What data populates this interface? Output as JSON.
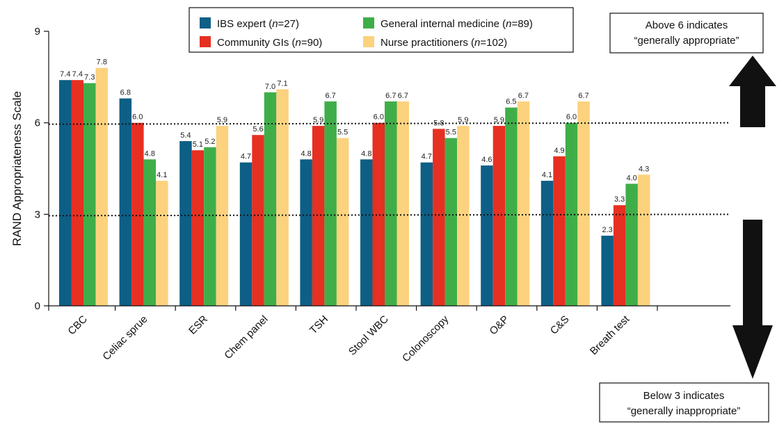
{
  "chart_data": {
    "type": "bar",
    "ylabel": "RAND Appropriateness Scale",
    "xlabel": "",
    "ylim": [
      0,
      9
    ],
    "yticks": [
      0,
      3,
      6,
      9
    ],
    "categories": [
      "CBC",
      "Celiac sprue",
      "ESR",
      "Chem panel",
      "TSH",
      "Stool WBC",
      "Colonoscopy",
      "O&P",
      "C&S",
      "Breath test"
    ],
    "series": [
      {
        "name": "IBS expert (n=27)",
        "color": "#0d5f86",
        "values": [
          7.4,
          6.8,
          5.4,
          4.7,
          4.8,
          4.8,
          4.7,
          4.6,
          4.1,
          2.3
        ],
        "labels": [
          "7.4",
          "6.8",
          "5.4",
          "4.7",
          "4.8",
          "4.8",
          "4.7",
          "4.6",
          "4.1",
          "2.3"
        ]
      },
      {
        "name": "Community GIs (n=90)",
        "color": "#e63022",
        "values": [
          7.4,
          6.0,
          5.1,
          5.6,
          5.9,
          6.0,
          5.8,
          5.9,
          4.9,
          3.3
        ],
        "labels": [
          "7.4",
          "6.0",
          "5.1",
          "5.6",
          "5.9",
          "6.0",
          "5.8",
          "5.9",
          "4.9",
          "3.3"
        ]
      },
      {
        "name": "General internal medicine (n=89)",
        "color": "#3fae49",
        "values": [
          7.3,
          4.8,
          5.2,
          7.0,
          6.7,
          6.7,
          5.5,
          6.5,
          6.0,
          4.0
        ],
        "labels": [
          "7.3",
          "4.8",
          "5.2",
          "7.0",
          "6.7",
          "6.7",
          "5.5",
          "6.5",
          "6.0",
          "4.0"
        ]
      },
      {
        "name": "Nurse practitioners (n=102)",
        "color": "#fcd27e",
        "values": [
          7.8,
          4.1,
          5.9,
          7.1,
          5.5,
          6.7,
          5.9,
          6.7,
          6.7,
          4.3
        ],
        "labels": [
          "7.8",
          "4.1",
          "5.9",
          "7.1",
          "5.5",
          "6.7",
          "5.9",
          "6.7",
          "6.7",
          "4.3"
        ]
      }
    ],
    "reference_lines": [
      6,
      3
    ],
    "legend": {
      "position": "top-center",
      "entries": [
        {
          "pre": "IBS expert (",
          "n": "n",
          "post": "=27)"
        },
        {
          "pre": "Community GIs (",
          "n": "n",
          "post": "=90)"
        },
        {
          "pre": "General internal medicine (",
          "n": "n",
          "post": "=89)"
        },
        {
          "pre": "Nurse practitioners (",
          "n": "n",
          "post": "=102)"
        }
      ]
    },
    "annotations": {
      "above": [
        "Above 6 indicates",
        "“generally appropriate”"
      ],
      "below": [
        "Below 3 indicates",
        "“generally inappropriate”"
      ]
    },
    "grid": false
  }
}
